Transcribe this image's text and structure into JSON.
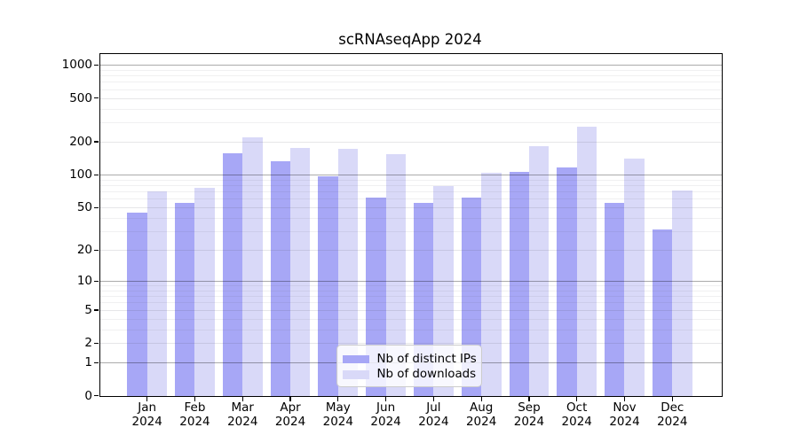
{
  "title": "scRNAseqApp 2024",
  "chart_data": {
    "type": "bar",
    "title": "scRNAseqApp 2024",
    "categories": [
      "Jan 2024",
      "Feb 2024",
      "Mar 2024",
      "Apr 2024",
      "May 2024",
      "Jun 2024",
      "Jul 2024",
      "Aug 2024",
      "Sep 2024",
      "Oct 2024",
      "Nov 2024",
      "Dec 2024"
    ],
    "series": [
      {
        "name": "Nb of distinct IPs",
        "color": "#a7a7f6",
        "values": [
          45,
          55,
          156,
          132,
          97,
          62,
          55,
          62,
          106,
          116,
          55,
          31
        ]
      },
      {
        "name": "Nb of downloads",
        "color": "#d9d9f8",
        "values": [
          70,
          76,
          218,
          176,
          173,
          153,
          79,
          105,
          181,
          273,
          140,
          72
        ]
      }
    ],
    "xlabel": "",
    "ylabel": "",
    "yscale": "log10(value+1)",
    "ylim": [
      0,
      1280
    ],
    "yticks": [
      0,
      1,
      2,
      5,
      10,
      20,
      50,
      100,
      200,
      500,
      1000
    ],
    "grid": "horizontal, log major and minor lines",
    "legend_position": "inside lower-center"
  },
  "colors": {
    "background": "#ffffff",
    "axis": "#000000",
    "grid_major": "#ababab",
    "grid_mid": "#e3e3e5",
    "grid_minor": "#f0f0f2",
    "legend_border": "#cccccc"
  }
}
